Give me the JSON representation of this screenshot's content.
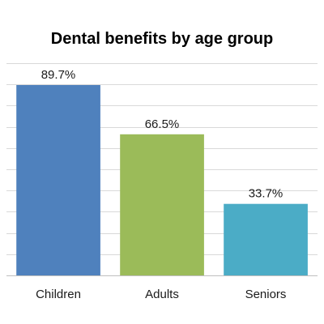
{
  "chart_data": {
    "type": "bar",
    "title": "Dental benefits by age group",
    "categories": [
      "Children",
      "Adults",
      "Seniors"
    ],
    "values": [
      89.7,
      66.5,
      33.7
    ],
    "data_labels": [
      "89.7%",
      "66.5%",
      "33.7%"
    ],
    "colors": [
      "#4f81bd",
      "#9bbb59",
      "#4bacc6"
    ],
    "xlabel": "",
    "ylabel": "",
    "ylim": [
      0,
      100
    ],
    "grid": true,
    "legend": "none"
  }
}
